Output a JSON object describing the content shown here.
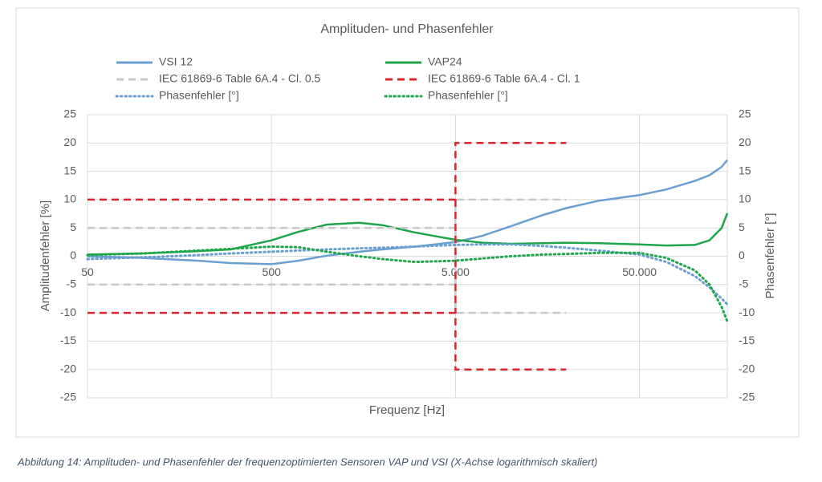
{
  "chart_data": {
    "type": "line",
    "title": "Amplituden- und Phasenfehler",
    "x_label": "Frequenz [Hz]",
    "y_label": "Amplitudenfehler [%]",
    "y2_label": "Phasenfehler [°]",
    "caption": "Abbildung 14: Amplituden- und Phasenfehler der frequenzoptimierten Sensoren VAP und VSI (X-Achse logarithmisch skaliert)",
    "x_log": true,
    "grid": true,
    "xlim": [
      50,
      150000
    ],
    "xticks": [
      50,
      500,
      {
        "value": 5000,
        "label": "5.000"
      },
      {
        "value": 50000,
        "label": "50.000"
      }
    ],
    "ylim": [
      -25,
      25
    ],
    "yticks": [
      -25,
      -20,
      -15,
      -10,
      -5,
      0,
      5,
      10,
      15,
      20,
      25
    ],
    "y2lim": [
      -25,
      25
    ],
    "y2ticks": [
      -25,
      -20,
      -15,
      -10,
      -5,
      0,
      5,
      10,
      15,
      20,
      25
    ],
    "x": [
      50,
      100,
      200,
      300,
      500,
      700,
      1000,
      1500,
      2000,
      3000,
      5000,
      7000,
      10000,
      15000,
      20000,
      30000,
      50000,
      70000,
      100000,
      120000,
      140000,
      150000
    ],
    "series": [
      {
        "name": "VSI 12",
        "color": "#6a9fd0",
        "style": "solid",
        "values": [
          0,
          -0.3,
          -0.8,
          -1.2,
          -1.4,
          -0.8,
          0.1,
          0.8,
          1.2,
          1.7,
          2.5,
          3.6,
          5.3,
          7.3,
          8.5,
          9.8,
          10.8,
          11.8,
          13.3,
          14.3,
          15.8,
          17
        ]
      },
      {
        "name": "VAP24",
        "color": "#1fa64a",
        "style": "solid",
        "values": [
          0.3,
          0.5,
          0.9,
          1.2,
          2.8,
          4.3,
          5.6,
          5.9,
          5.5,
          4.2,
          2.9,
          2.4,
          2.2,
          2.3,
          2.4,
          2.3,
          2.1,
          1.9,
          2.0,
          2.8,
          5,
          7.6
        ]
      },
      {
        "name": "IEC 61869-6 Table 6A.4 - Cl. 0.5",
        "color": "#c8c8c8",
        "style": "dashed",
        "x": [
          50,
          5000,
          5000,
          20000
        ],
        "values": [
          5,
          5,
          10,
          10
        ],
        "values_lower": [
          -5,
          -5,
          -10,
          -10
        ]
      },
      {
        "name": "IEC 61869-6 Table 6A.4 - Cl. 1",
        "color": "#d9262a",
        "style": "dashed",
        "x": [
          50,
          5000,
          5000,
          20000
        ],
        "values": [
          10,
          10,
          20,
          20
        ],
        "values_lower": [
          -10,
          -10,
          -20,
          -20
        ]
      },
      {
        "name": "Phasenfehler [°]",
        "color": "#6a9fd0",
        "style": "dotted",
        "axis": "y2",
        "values": [
          -0.5,
          -0.2,
          0.2,
          0.5,
          0.8,
          1.0,
          1.2,
          1.4,
          1.5,
          1.7,
          2.0,
          2.1,
          2.1,
          1.8,
          1.5,
          1.0,
          0.3,
          -1.0,
          -3.5,
          -5.5,
          -7.5,
          -8.5
        ]
      },
      {
        "name": "Phasenfehler [°]",
        "color": "#1fa64a",
        "style": "dotted",
        "axis": "y2",
        "values": [
          0.2,
          0.5,
          1.0,
          1.3,
          1.7,
          1.6,
          0.8,
          0.0,
          -0.5,
          -1.0,
          -0.8,
          -0.4,
          0.0,
          0.3,
          0.4,
          0.6,
          0.6,
          -0.3,
          -2.5,
          -5,
          -9,
          -11.5
        ]
      }
    ]
  }
}
